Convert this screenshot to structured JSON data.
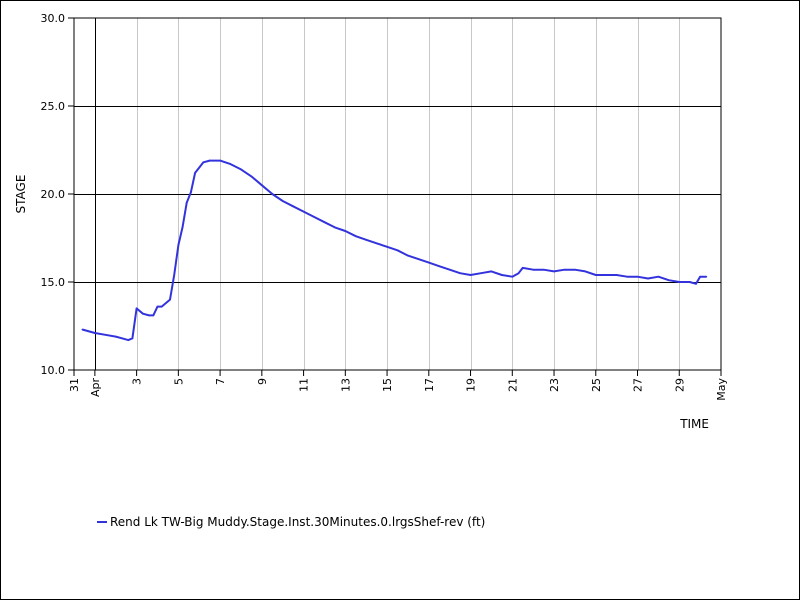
{
  "chart_data": {
    "type": "line",
    "ylabel": "STAGE",
    "xlabel": "TIME",
    "ylim": [
      10.0,
      30.0
    ],
    "y_ticks": [
      "10.0",
      "15.0",
      "20.0",
      "25.0",
      "30.0"
    ],
    "x_range": [
      "Mar 31",
      "May 1"
    ],
    "x_ticks": [
      {
        "label": "31",
        "day": 0
      },
      {
        "label": "3",
        "day": 3
      },
      {
        "label": "5",
        "day": 5
      },
      {
        "label": "7",
        "day": 7
      },
      {
        "label": "9",
        "day": 9
      },
      {
        "label": "11",
        "day": 11
      },
      {
        "label": "13",
        "day": 13
      },
      {
        "label": "15",
        "day": 15
      },
      {
        "label": "17",
        "day": 17
      },
      {
        "label": "19",
        "day": 19
      },
      {
        "label": "21",
        "day": 21
      },
      {
        "label": "23",
        "day": 23
      },
      {
        "label": "25",
        "day": 25
      },
      {
        "label": "27",
        "day": 27
      },
      {
        "label": "29",
        "day": 29
      }
    ],
    "month_labels": [
      {
        "label": "Apr",
        "day": 1
      },
      {
        "label": "May",
        "day": 31
      }
    ],
    "grid": {
      "vertical": true,
      "horizontal": true
    },
    "series": [
      {
        "name": "Rend Lk TW-Big Muddy.Stage.Inst.30Minutes.0.lrgsShef-rev (ft)",
        "color": "#3333dd",
        "x": [
          0.4,
          1.0,
          1.5,
          2.0,
          2.3,
          2.6,
          2.8,
          3.0,
          3.3,
          3.6,
          3.8,
          4.0,
          4.2,
          4.6,
          4.8,
          5.0,
          5.2,
          5.4,
          5.6,
          5.8,
          6.2,
          6.5,
          7.0,
          7.5,
          8.0,
          8.5,
          9.0,
          9.5,
          10.0,
          10.5,
          11.0,
          11.5,
          12.0,
          12.5,
          13.0,
          13.5,
          14.0,
          14.5,
          15.0,
          15.5,
          16.0,
          16.5,
          17.0,
          17.5,
          18.0,
          18.5,
          19.0,
          19.5,
          20.0,
          20.5,
          21.0,
          21.3,
          21.5,
          22.0,
          22.5,
          23.0,
          23.5,
          24.0,
          24.5,
          25.0,
          25.5,
          26.0,
          26.5,
          27.0,
          27.5,
          28.0,
          28.5,
          29.0,
          29.5,
          29.8,
          30.0,
          30.3
        ],
        "y": [
          12.3,
          12.1,
          12.0,
          11.9,
          11.8,
          11.7,
          11.8,
          13.5,
          13.2,
          13.1,
          13.1,
          13.6,
          13.6,
          14.0,
          15.4,
          17.1,
          18.1,
          19.5,
          20.1,
          21.2,
          21.8,
          21.9,
          21.9,
          21.7,
          21.4,
          21.0,
          20.5,
          20.0,
          19.6,
          19.3,
          19.0,
          18.7,
          18.4,
          18.1,
          17.9,
          17.6,
          17.4,
          17.2,
          17.0,
          16.8,
          16.5,
          16.3,
          16.1,
          15.9,
          15.7,
          15.5,
          15.4,
          15.5,
          15.6,
          15.4,
          15.3,
          15.5,
          15.8,
          15.7,
          15.7,
          15.6,
          15.7,
          15.7,
          15.6,
          15.4,
          15.4,
          15.4,
          15.3,
          15.3,
          15.2,
          15.3,
          15.1,
          15.0,
          15.0,
          14.9,
          15.3,
          15.3
        ]
      }
    ]
  }
}
